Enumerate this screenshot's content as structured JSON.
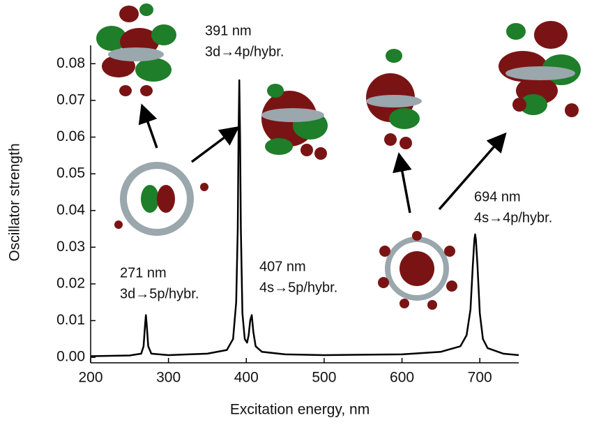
{
  "chart_data": {
    "type": "line",
    "x_label": "Excitation energy, nm",
    "y_label": "Oscillator strength",
    "xlim": [
      200,
      750
    ],
    "ylim": [
      -0.0015,
      0.085
    ],
    "xticks": [
      200,
      300,
      400,
      500,
      600,
      700
    ],
    "yticks": [
      {
        "value": 0,
        "label": "0.00"
      },
      {
        "value": 0.01,
        "label": "0.01"
      },
      {
        "value": 0.02,
        "label": "0.02"
      },
      {
        "value": 0.03,
        "label": "0.03"
      },
      {
        "value": 0.04,
        "label": "0.04"
      },
      {
        "value": 0.05,
        "label": "0.05"
      },
      {
        "value": 0.06,
        "label": "0.06"
      },
      {
        "value": 0.07,
        "label": "0.07"
      },
      {
        "value": 0.08,
        "label": "0.08"
      }
    ],
    "series": [
      {
        "color": "#000000",
        "x": [
          200,
          250,
          265,
          268,
          270,
          271,
          272,
          274,
          278,
          300,
          350,
          375,
          383,
          387,
          389,
          390,
          391,
          392,
          393,
          395,
          398,
          401,
          403,
          405,
          407,
          409,
          412,
          420,
          450,
          500,
          600,
          650,
          675,
          683,
          688,
          691,
          693,
          694,
          695,
          697,
          700,
          704,
          710,
          730,
          750
        ],
        "values": [
          0.0003,
          0.0005,
          0.001,
          0.003,
          0.009,
          0.0115,
          0.009,
          0.003,
          0.001,
          0.0006,
          0.001,
          0.002,
          0.005,
          0.015,
          0.035,
          0.06,
          0.0755,
          0.06,
          0.035,
          0.012,
          0.005,
          0.004,
          0.006,
          0.01,
          0.0115,
          0.007,
          0.003,
          0.0015,
          0.0008,
          0.0006,
          0.0008,
          0.0015,
          0.003,
          0.006,
          0.013,
          0.025,
          0.032,
          0.0335,
          0.032,
          0.025,
          0.012,
          0.005,
          0.0025,
          0.001,
          0.0006
        ]
      }
    ],
    "annotations": [
      {
        "lines": [
          "271 nm",
          "3d→5p/hybr."
        ]
      },
      {
        "lines": [
          "391 nm",
          "3d→4p/hybr."
        ]
      },
      {
        "lines": [
          "407 nm",
          "4s→5p/hybr."
        ]
      },
      {
        "lines": [
          "694 nm",
          "4s→4p/hybr."
        ]
      }
    ]
  }
}
